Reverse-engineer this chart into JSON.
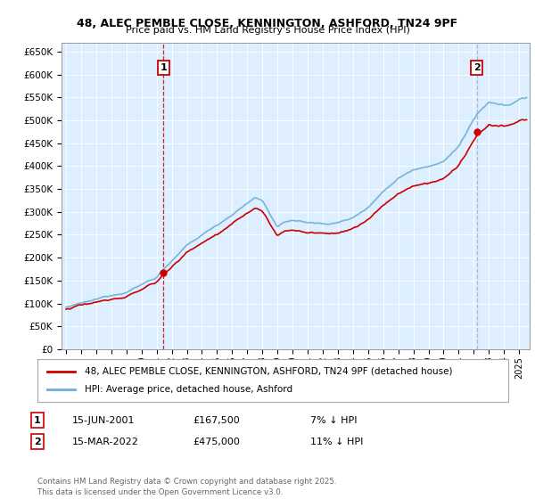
{
  "title": "48, ALEC PEMBLE CLOSE, KENNINGTON, ASHFORD, TN24 9PF",
  "subtitle": "Price paid vs. HM Land Registry's House Price Index (HPI)",
  "ylabel_ticks": [
    "£0",
    "£50K",
    "£100K",
    "£150K",
    "£200K",
    "£250K",
    "£300K",
    "£350K",
    "£400K",
    "£450K",
    "£500K",
    "£550K",
    "£600K",
    "£650K"
  ],
  "ytick_vals": [
    0,
    50000,
    100000,
    150000,
    200000,
    250000,
    300000,
    350000,
    400000,
    450000,
    500000,
    550000,
    600000,
    650000
  ],
  "ylim": [
    0,
    670000
  ],
  "xlim_start": 1994.7,
  "xlim_end": 2025.7,
  "hpi_color": "#6baed6",
  "price_color": "#cc0000",
  "vline1_color": "#cc0000",
  "vline2_color": "#aaaacc",
  "marker1_date": 2001.45,
  "marker1_price": 167500,
  "marker2_date": 2022.2,
  "marker2_price": 475000,
  "vline1_x": 2001.45,
  "vline2_x": 2022.2,
  "legend_line1": "48, ALEC PEMBLE CLOSE, KENNINGTON, ASHFORD, TN24 9PF (detached house)",
  "legend_line2": "HPI: Average price, detached house, Ashford",
  "annotation1_label": "1",
  "annotation2_label": "2",
  "table_date1": "15-JUN-2001",
  "table_price1": "£167,500",
  "table_pct1": "7% ↓ HPI",
  "table_date2": "15-MAR-2022",
  "table_price2": "£475,000",
  "table_pct2": "11% ↓ HPI",
  "footer": "Contains HM Land Registry data © Crown copyright and database right 2025.\nThis data is licensed under the Open Government Licence v3.0.",
  "plot_bg_color": "#ddeeff",
  "fig_bg_color": "#ffffff",
  "grid_color": "#ffffff"
}
